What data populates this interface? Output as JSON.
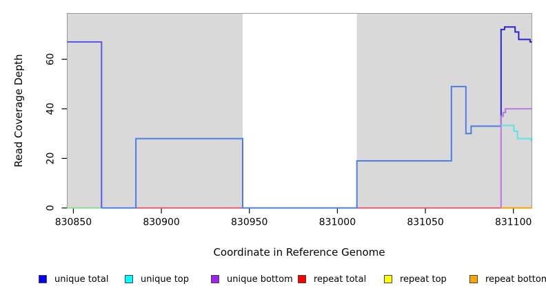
{
  "chart_data": {
    "type": "line",
    "subtype": "step-coverage",
    "title": "",
    "xlabel": "Coordinate in Reference Genome",
    "ylabel": "Read Coverage Depth",
    "xlim": [
      830846.5,
      831110.5
    ],
    "ylim": [
      0,
      78.5
    ],
    "xticks": [
      830850,
      830900,
      830950,
      831000,
      831050,
      831100
    ],
    "yticks": [
      0,
      20,
      40,
      60
    ],
    "grid": false,
    "legend_position": "bottom",
    "background": {
      "panel_color": "#d9d9d9",
      "gap_band": {
        "from": 830946.2,
        "to": 831011.1,
        "color": "#ffffff"
      },
      "border_color": "#999999"
    },
    "series": [
      {
        "name": "unique-top-repeat-top-baseline",
        "color": "#90dd90",
        "step_points": [
          [
            830846.5,
            0
          ],
          [
            830866,
            0
          ]
        ]
      },
      {
        "name": "repeat-total",
        "color": "#e55c6c",
        "step_points": [
          [
            830866,
            0
          ],
          [
            831093,
            0
          ]
        ]
      },
      {
        "name": "unique-total-left",
        "color": "#5b55ee",
        "step_points": [
          [
            830846.5,
            67
          ],
          [
            830866,
            67
          ],
          [
            830866,
            0
          ]
        ]
      },
      {
        "name": "unique-total-middle",
        "color": "#4d7ce8",
        "step_points": [
          [
            830866,
            0
          ],
          [
            830885.5,
            0
          ],
          [
            830885.5,
            28
          ],
          [
            830946.2,
            28
          ],
          [
            830946.2,
            0
          ],
          [
            831011.1,
            0
          ],
          [
            831011.1,
            19
          ],
          [
            831064.8,
            19
          ],
          [
            831064.8,
            49
          ],
          [
            831073,
            49
          ],
          [
            831073,
            30
          ],
          [
            831076,
            30
          ],
          [
            831076,
            33
          ],
          [
            831093,
            33
          ]
        ]
      },
      {
        "name": "unique-total-right",
        "color": "#2626cc",
        "step_points": [
          [
            831093,
            33
          ],
          [
            831093,
            72
          ],
          [
            831095,
            72
          ],
          [
            831095,
            73
          ],
          [
            831101,
            73
          ],
          [
            831101,
            71
          ],
          [
            831103,
            71
          ],
          [
            831103,
            68
          ],
          [
            831109.5,
            68
          ],
          [
            831109.5,
            67
          ],
          [
            831110.5,
            67
          ]
        ]
      },
      {
        "name": "unique-bottom",
        "color": "#bb74e8",
        "step_points": [
          [
            831093,
            0
          ],
          [
            831093,
            37
          ],
          [
            831094.2,
            37
          ],
          [
            831094.2,
            38.5
          ],
          [
            831095.5,
            38.5
          ],
          [
            831095.5,
            40
          ],
          [
            831110.5,
            40
          ]
        ]
      },
      {
        "name": "unique-top",
        "color": "#5fe3e3",
        "step_points": [
          [
            831093,
            33.3
          ],
          [
            831100.3,
            33.3
          ],
          [
            831100.3,
            31
          ],
          [
            831102.3,
            31
          ],
          [
            831102.3,
            28
          ],
          [
            831110,
            28
          ],
          [
            831110,
            27
          ]
        ]
      },
      {
        "name": "repeat-bottom",
        "color": "#ffa000",
        "step_points": [
          [
            831093,
            0
          ],
          [
            831110.5,
            0
          ]
        ]
      }
    ]
  },
  "legend": {
    "items": [
      {
        "label": "unique total",
        "color": "#0000ff"
      },
      {
        "label": "unique top",
        "color": "#00ffff"
      },
      {
        "label": "unique bottom",
        "color": "#a020f0"
      },
      {
        "label": "repeat total",
        "color": "#ff0000"
      },
      {
        "label": "repeat top",
        "color": "#ffff00"
      },
      {
        "label": "repeat bottom",
        "color": "#ffa500"
      }
    ]
  }
}
